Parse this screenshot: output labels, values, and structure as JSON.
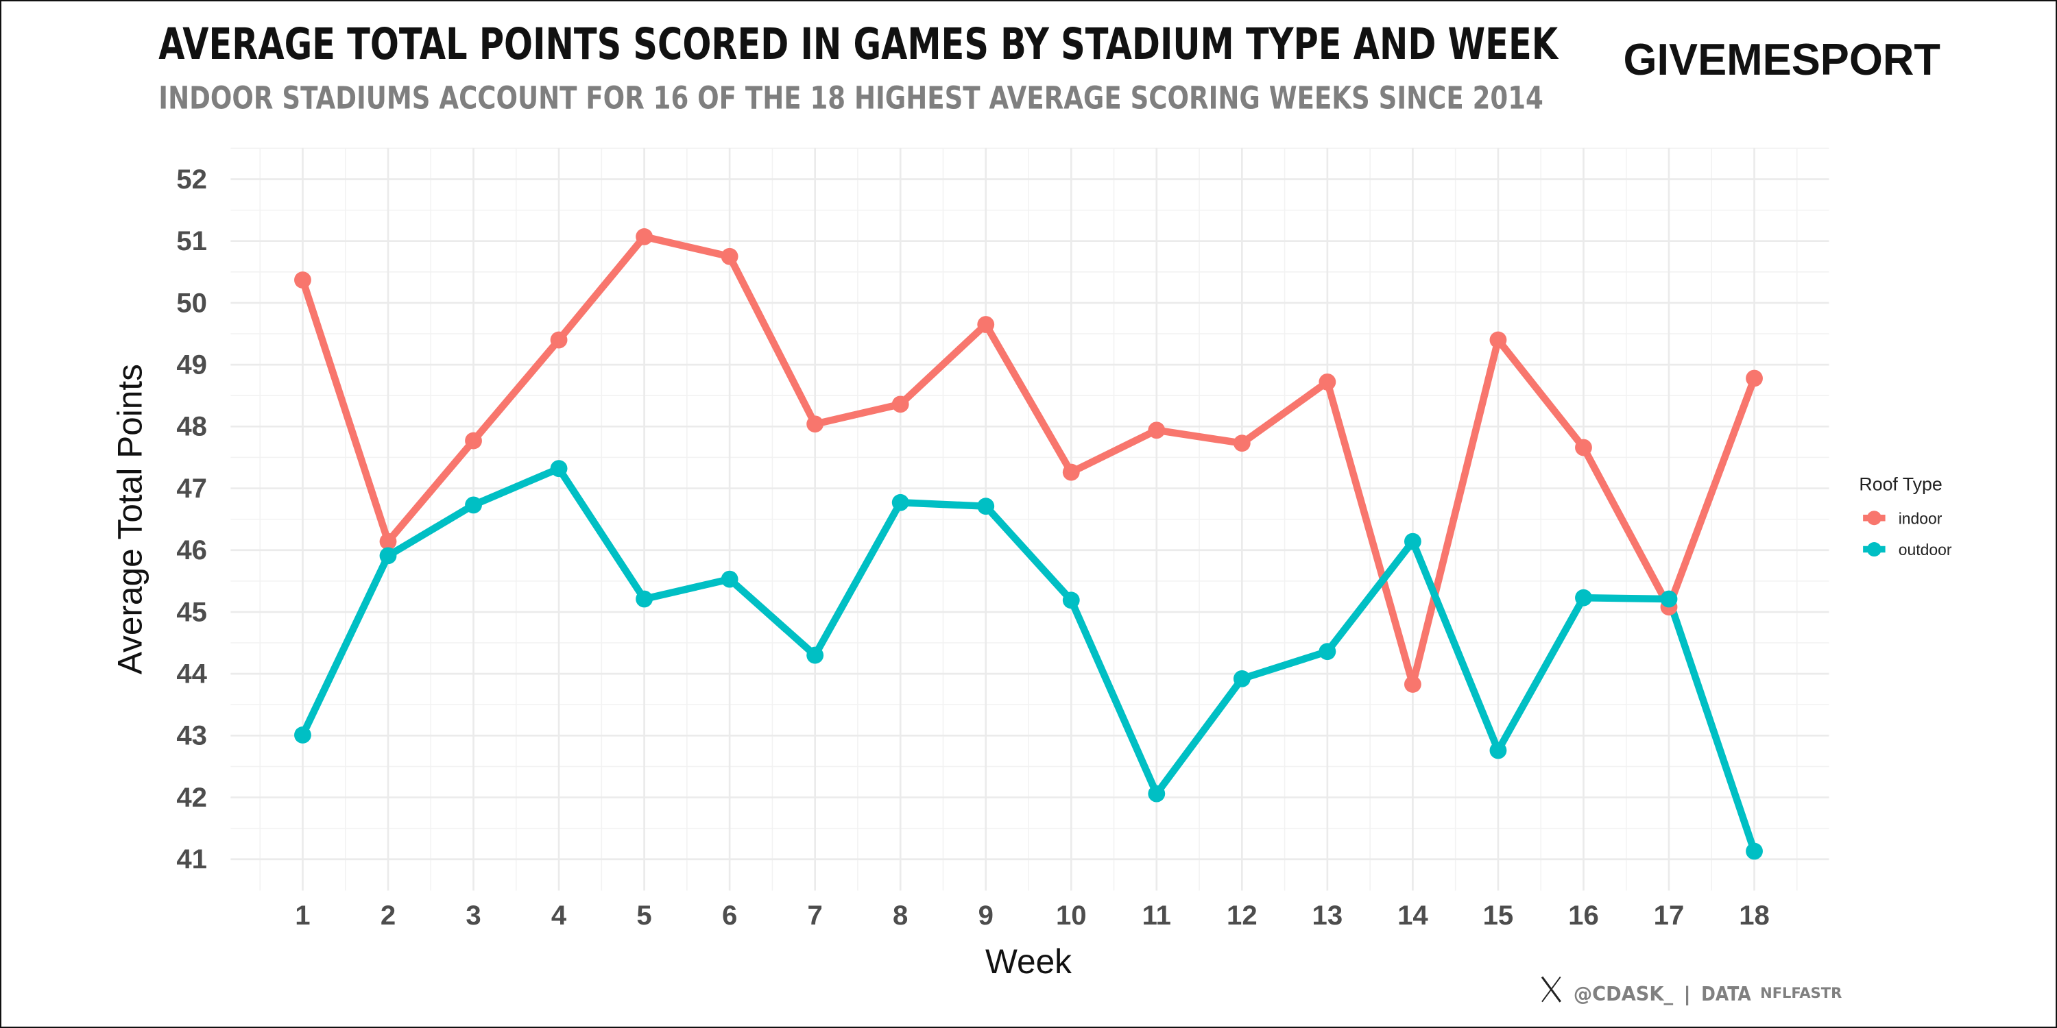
{
  "header": {
    "title": "AVERAGE TOTAL POINTS SCORED IN GAMES BY STADIUM TYPE AND WEEK",
    "subtitle": "INDOOR STADIUMS ACCOUNT FOR 16 OF THE 18 HIGHEST AVERAGE SCORING WEEKS SINCE 2014",
    "logo": "GIVEMESPORT"
  },
  "footer": {
    "handle": "@CDASK_",
    "separator": "|",
    "data_label": "DATA",
    "data_source": "NFLFASTR",
    "social_icon": "x-logo-icon"
  },
  "chart_data": {
    "type": "line",
    "title": "AVERAGE TOTAL POINTS SCORED IN GAMES BY STADIUM TYPE AND WEEK",
    "subtitle": "INDOOR STADIUMS ACCOUNT FOR 16 OF THE 18 HIGHEST AVERAGE SCORING WEEKS SINCE 2014",
    "xlabel": "Week",
    "ylabel": "Average Total Points",
    "x": [
      1,
      2,
      3,
      4,
      5,
      6,
      7,
      8,
      9,
      10,
      11,
      12,
      13,
      14,
      15,
      16,
      17,
      18
    ],
    "xticks": [
      "1",
      "2",
      "3",
      "4",
      "5",
      "6",
      "7",
      "8",
      "9",
      "10",
      "11",
      "12",
      "13",
      "14",
      "15",
      "16",
      "17",
      "18"
    ],
    "yticks": [
      "41",
      "42",
      "43",
      "44",
      "45",
      "46",
      "47",
      "48",
      "49",
      "50",
      "51",
      "52"
    ],
    "ylim": [
      40.5,
      52.5
    ],
    "grid": true,
    "legend": {
      "title": "Roof Type",
      "placement": "right"
    },
    "series": [
      {
        "name": "indoor",
        "color": "#F8766D",
        "values": [
          50.37,
          46.14,
          47.77,
          49.4,
          51.07,
          50.75,
          48.04,
          48.36,
          49.65,
          47.26,
          47.94,
          47.73,
          48.72,
          43.83,
          49.4,
          47.66,
          45.08,
          48.78
        ]
      },
      {
        "name": "outdoor",
        "color": "#00BFC4",
        "values": [
          43.01,
          45.91,
          46.73,
          47.32,
          45.21,
          45.53,
          44.3,
          46.77,
          46.71,
          45.19,
          42.06,
          43.92,
          44.36,
          46.14,
          42.76,
          45.23,
          45.21,
          41.13
        ]
      }
    ]
  }
}
